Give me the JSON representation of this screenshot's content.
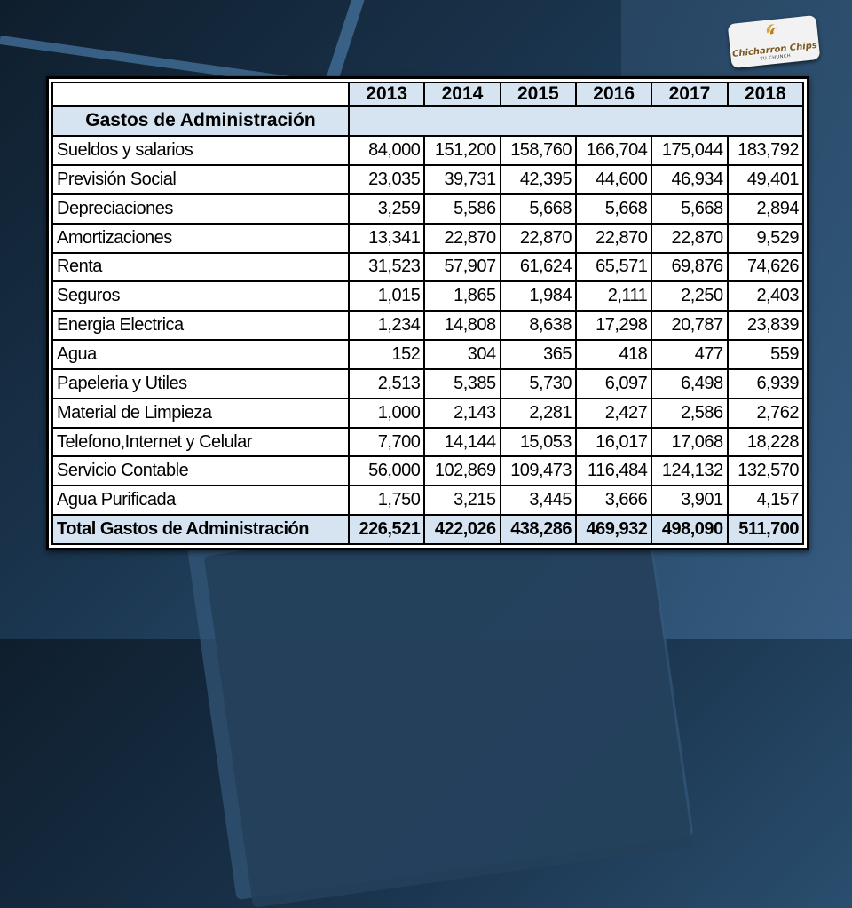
{
  "logo": {
    "brand": "Chicharron Chips",
    "tagline": "TU CHUNCH"
  },
  "table": {
    "years": [
      "2013",
      "2014",
      "2015",
      "2016",
      "2017",
      "2018"
    ],
    "section_title": "Gastos de Administración",
    "rows": [
      {
        "label": "Sueldos y salarios",
        "values": [
          "84,000",
          "151,200",
          "158,760",
          "166,704",
          "175,044",
          "183,792"
        ]
      },
      {
        "label": "Previsión Social",
        "values": [
          "23,035",
          "39,731",
          "42,395",
          "44,600",
          "46,934",
          "49,401"
        ]
      },
      {
        "label": "Depreciaciones",
        "values": [
          "3,259",
          "5,586",
          "5,668",
          "5,668",
          "5,668",
          "2,894"
        ]
      },
      {
        "label": "Amortizaciones",
        "values": [
          "13,341",
          "22,870",
          "22,870",
          "22,870",
          "22,870",
          "9,529"
        ]
      },
      {
        "label": "Renta",
        "values": [
          "31,523",
          "57,907",
          "61,624",
          "65,571",
          "69,876",
          "74,626"
        ]
      },
      {
        "label": "Seguros",
        "values": [
          "1,015",
          "1,865",
          "1,984",
          "2,111",
          "2,250",
          "2,403"
        ]
      },
      {
        "label": "Energia Electrica",
        "values": [
          "1,234",
          "14,808",
          "8,638",
          "17,298",
          "20,787",
          "23,839"
        ]
      },
      {
        "label": "Agua",
        "values": [
          "152",
          "304",
          "365",
          "418",
          "477",
          "559"
        ]
      },
      {
        "label": "Papeleria y Utiles",
        "values": [
          "2,513",
          "5,385",
          "5,730",
          "6,097",
          "6,498",
          "6,939"
        ]
      },
      {
        "label": "Material de Limpieza",
        "values": [
          "1,000",
          "2,143",
          "2,281",
          "2,427",
          "2,586",
          "2,762"
        ]
      },
      {
        "label": "Telefono,Internet y Celular",
        "values": [
          "7,700",
          "14,144",
          "15,053",
          "16,017",
          "17,068",
          "18,228"
        ]
      },
      {
        "label": "Servicio Contable",
        "values": [
          "56,000",
          "102,869",
          "109,473",
          "116,484",
          "124,132",
          "132,570"
        ]
      },
      {
        "label": "Agua Purificada",
        "values": [
          "1,750",
          "3,215",
          "3,445",
          "3,666",
          "3,901",
          "4,157"
        ]
      }
    ],
    "total": {
      "label": "Total Gastos de Administración",
      "values": [
        "226,521",
        "422,026",
        "438,286",
        "469,932",
        "498,090",
        "511,700"
      ]
    }
  }
}
